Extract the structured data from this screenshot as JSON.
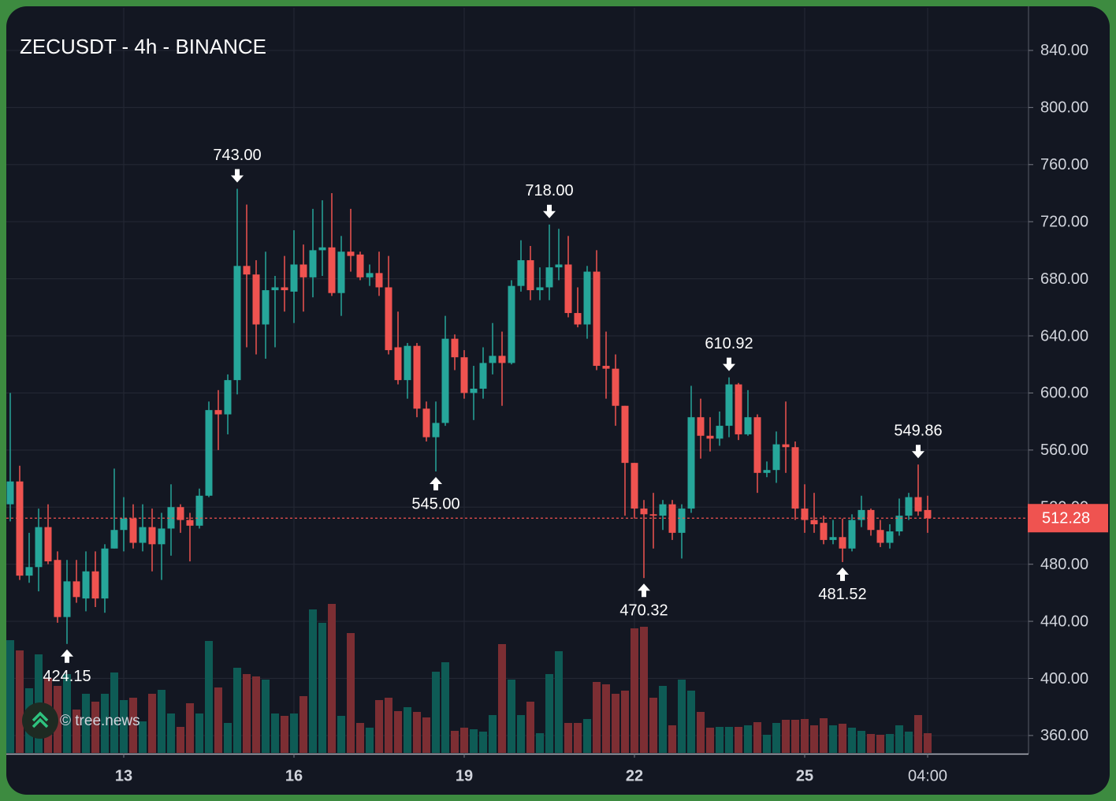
{
  "chart_data": {
    "type": "candlestick",
    "title": "ZECUSDT - 4h - BINANCE",
    "watermark": "© tree.news",
    "categories": [
      null,
      null,
      null,
      null,
      null,
      null,
      null,
      null,
      null,
      null,
      null,
      null,
      "13",
      null,
      null,
      null,
      null,
      null,
      null,
      null,
      null,
      null,
      null,
      null,
      null,
      null,
      null,
      null,
      null,
      null,
      "16",
      null,
      null,
      null,
      null,
      null,
      null,
      null,
      null,
      null,
      null,
      null,
      null,
      null,
      null,
      null,
      null,
      null,
      "19",
      null,
      null,
      null,
      null,
      null,
      null,
      null,
      null,
      null,
      null,
      null,
      null,
      null,
      null,
      null,
      null,
      null,
      "22",
      null,
      null,
      null,
      null,
      null,
      null,
      null,
      null,
      null,
      null,
      null,
      null,
      null,
      null,
      null,
      null,
      null,
      "25",
      null,
      null,
      null,
      null,
      null,
      null,
      null,
      null,
      null,
      null,
      null,
      null,
      "04:00"
    ],
    "open": [
      522,
      538,
      472,
      478,
      506,
      483,
      443,
      468,
      456,
      475,
      456,
      491,
      504,
      512,
      495,
      506,
      494,
      505,
      520,
      511,
      507,
      528,
      588,
      585,
      609,
      689,
      683,
      648,
      672,
      674,
      671,
      690,
      681,
      700,
      702,
      670,
      699,
      697,
      681,
      684,
      674,
      632,
      609,
      633,
      589,
      569,
      579,
      638,
      625,
      600,
      603,
      621,
      626,
      621,
      675,
      693,
      672,
      674,
      688,
      690,
      656,
      648,
      685,
      619,
      617,
      591,
      551,
      519,
      515,
      514,
      522,
      502,
      519,
      583,
      570,
      568,
      577,
      606,
      571,
      583,
      544,
      546,
      564,
      562,
      519,
      511,
      509,
      497,
      499,
      491,
      511,
      518,
      504,
      495,
      503,
      514,
      527,
      518
    ],
    "high": [
      600,
      549,
      502,
      519,
      522,
      489,
      483,
      483,
      489,
      489,
      494,
      547,
      527,
      522,
      522,
      519,
      516,
      536,
      522,
      516,
      533,
      594,
      602,
      613,
      743,
      732,
      693,
      699,
      682,
      696,
      714,
      704,
      729,
      735,
      740,
      710,
      729,
      699,
      690,
      699,
      696,
      657,
      635,
      635,
      594,
      594,
      654,
      641,
      630,
      619,
      632,
      649,
      643,
      679,
      707,
      703,
      688,
      718,
      715,
      710,
      674,
      689,
      700,
      643,
      627,
      591,
      551,
      525,
      530,
      525,
      525,
      522,
      605,
      596,
      583,
      587,
      610.92,
      607,
      602,
      585,
      552,
      573,
      594,
      566,
      536,
      530,
      514,
      511,
      512,
      515,
      528,
      519,
      511,
      508,
      526,
      530,
      549.86,
      528
    ],
    "low": [
      510,
      469,
      467,
      461,
      480,
      439,
      424.15,
      453,
      447,
      450,
      446,
      491,
      489,
      491,
      489,
      475,
      469,
      486,
      502,
      482,
      505,
      527,
      560,
      571,
      599,
      632,
      627,
      624,
      632,
      657,
      649,
      657,
      667,
      682,
      668,
      654,
      685,
      679,
      675,
      668,
      627,
      606,
      596,
      583,
      566,
      545,
      577,
      616,
      596,
      581,
      596,
      613,
      591,
      620,
      671,
      665,
      665,
      665,
      679,
      653,
      646,
      638,
      616,
      596,
      577,
      514,
      512,
      470.32,
      491,
      504,
      497,
      484,
      516,
      554,
      559,
      563,
      569,
      567,
      570,
      530,
      541,
      537,
      544,
      511,
      502,
      502,
      494,
      494,
      481.52,
      489,
      506,
      500,
      492,
      491,
      500,
      511,
      514,
      502
    ],
    "close": [
      538,
      472,
      478,
      506,
      482,
      443,
      468,
      457,
      475,
      456,
      491,
      504,
      512,
      495,
      506,
      494,
      505,
      520,
      511,
      507,
      528,
      588,
      585,
      609,
      689,
      683,
      648,
      672,
      674,
      672,
      690,
      681,
      700,
      702,
      670,
      699,
      696,
      681,
      684,
      674,
      630,
      609,
      633,
      589,
      569,
      579,
      638,
      625,
      600,
      603,
      621,
      626,
      621,
      675,
      693,
      672,
      674,
      688,
      690,
      656,
      648,
      685,
      619,
      617,
      591,
      551,
      519,
      515,
      514,
      522,
      502,
      519,
      583,
      570,
      568,
      577,
      606,
      571,
      583,
      544,
      546,
      564,
      562,
      519,
      511,
      508,
      497,
      499,
      491,
      511,
      518,
      504,
      495,
      503,
      514,
      527,
      517,
      512.28
    ],
    "volume": [
      143,
      130,
      82,
      125,
      95,
      85,
      100,
      55,
      75,
      65,
      75,
      102,
      67,
      70,
      40,
      75,
      80,
      50,
      33,
      63,
      50,
      142,
      83,
      38,
      108,
      100,
      97,
      93,
      50,
      47,
      50,
      72,
      182,
      165,
      189,
      47,
      152,
      38,
      32,
      67,
      70,
      53,
      58,
      52,
      45,
      103,
      115,
      28,
      32,
      30,
      27,
      48,
      138,
      93,
      48,
      65,
      25,
      100,
      129,
      38,
      38,
      43,
      90,
      87,
      75,
      79,
      158,
      160,
      70,
      85,
      35,
      93,
      79,
      52,
      32,
      33,
      33,
      33,
      35,
      39,
      23,
      38,
      42,
      42,
      43,
      35,
      44,
      35,
      37,
      32,
      28,
      24,
      23,
      24,
      35,
      27,
      48,
      25
    ],
    "volume_lim": [
      0,
      945
    ],
    "up_color": "#26a69a",
    "down_color": "#ef5350",
    "volume_up_color": "#0e5b55",
    "volume_down_color": "#7c2e33",
    "ylim": [
      347.8,
      869.8
    ],
    "yticks": [
      {
        "value": 360,
        "label": "360.00"
      },
      {
        "value": 400,
        "label": "400.00"
      },
      {
        "value": 440,
        "label": "440.00"
      },
      {
        "value": 480,
        "label": "480.00"
      },
      {
        "value": 520,
        "label": "520.00"
      },
      {
        "value": 560,
        "label": "560.00"
      },
      {
        "value": 600,
        "label": "600.00"
      },
      {
        "value": 640,
        "label": "640.00"
      },
      {
        "value": 680,
        "label": "680.00"
      },
      {
        "value": 720,
        "label": "720.00"
      },
      {
        "value": 760,
        "label": "760.00"
      },
      {
        "value": 800,
        "label": "800.00"
      },
      {
        "value": 840,
        "label": "840.00"
      }
    ],
    "grid": true,
    "annotations": [
      {
        "value": 424.15,
        "label": "424.15"
      },
      {
        "value": 743,
        "label": "743.00"
      },
      {
        "value": 545,
        "label": "545.00"
      },
      {
        "value": 718,
        "label": "718.00"
      },
      {
        "value": 470.32,
        "label": "470.32"
      },
      {
        "value": 610.92,
        "label": "610.92"
      },
      {
        "value": 481.52,
        "label": "481.52"
      },
      {
        "value": 549.86,
        "label": "549.86"
      }
    ]
  }
}
